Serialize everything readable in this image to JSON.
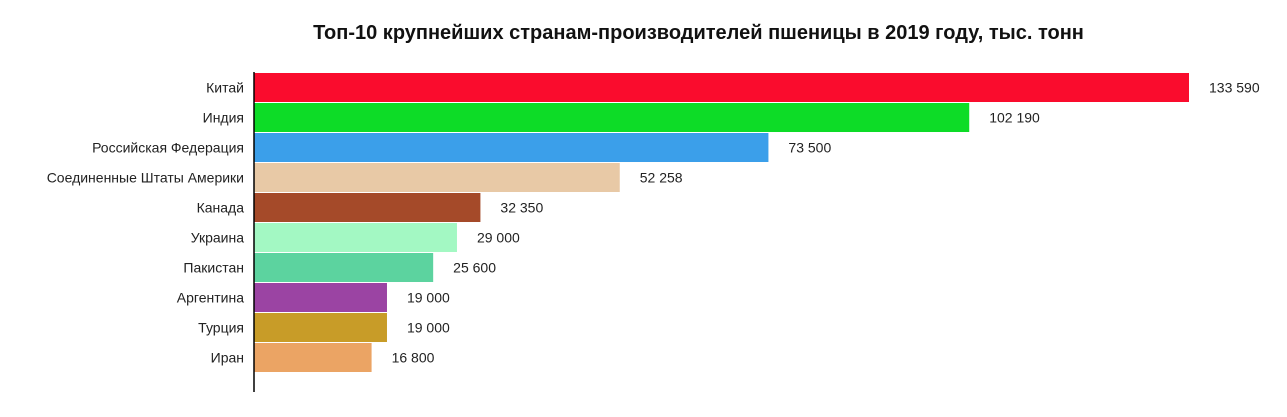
{
  "chart_data": {
    "type": "bar",
    "orientation": "horizontal",
    "title": "Топ-10 крупнейших странам-производителей пшеницы в 2019 году, тыс. тонн",
    "categories": [
      "Китай",
      "Индия",
      "Российская Федерация",
      "Соединенные Штаты Америки",
      "Канада",
      "Украина",
      "Пакистан",
      "Аргентина",
      "Турция",
      "Иран"
    ],
    "values": [
      133590,
      102190,
      73500,
      52258,
      32350,
      29000,
      25600,
      19000,
      19000,
      16800
    ],
    "value_labels": [
      "133 590",
      "102 190",
      "73 500",
      "52 258",
      "32 350",
      "29 000",
      "25 600",
      "19 000",
      "19 000",
      "16 800"
    ],
    "colors": [
      "#fa0c2d",
      "#0ddc27",
      "#3b9fea",
      "#e8c9a6",
      "#a54a29",
      "#a3f8c3",
      "#5cd39f",
      "#9b44a3",
      "#c89c28",
      "#eba464"
    ],
    "xlim": [
      0,
      133590
    ],
    "grid": false,
    "legend": "none"
  }
}
